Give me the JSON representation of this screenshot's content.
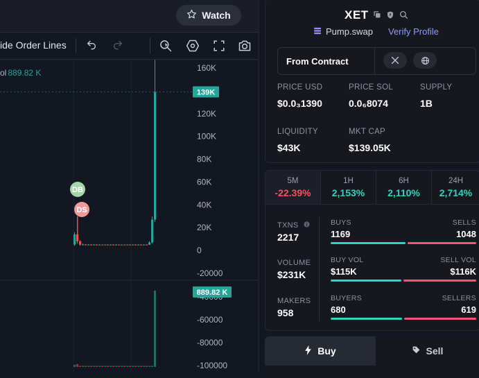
{
  "topbar": {
    "watch_label": "Watch"
  },
  "toolbar": {
    "order_lines_label": "ide Order Lines"
  },
  "volume": {
    "label": "ol",
    "value": "889.82 K"
  },
  "chart_data": {
    "type": "candlestick",
    "price_axis": {
      "ticks": [
        "160K",
        "140K",
        "120K",
        "100K",
        "80K",
        "60K",
        "40K",
        "20K",
        "0",
        "-20000"
      ],
      "tick_values": [
        160000,
        140000,
        120000,
        100000,
        80000,
        60000,
        40000,
        20000,
        0,
        -20000
      ],
      "last_price_label": "139K",
      "last_price": 139000
    },
    "volume_axis": {
      "ticks": [
        "-40000",
        "-60000",
        "-80000",
        "-100000"
      ],
      "tick_values": [
        -40000,
        -60000,
        -80000,
        -100000
      ],
      "last_volume_label": "889.82 K"
    },
    "markers": [
      {
        "label": "DB",
        "color": "#a5d6a7"
      },
      {
        "label": "DS",
        "color": "#ef9a9a"
      }
    ],
    "candles": [
      {
        "open": 5000,
        "close": 14000,
        "high": 16000,
        "low": 4000,
        "up": true
      },
      {
        "open": 14000,
        "close": 8000,
        "high": 30000,
        "low": 6000,
        "up": false
      },
      {
        "open": 8000,
        "close": 5000,
        "high": 9000,
        "low": 4000,
        "up": false
      },
      {
        "open": 5000,
        "close": 5200,
        "high": 6000,
        "low": 4500,
        "up": true
      },
      {
        "open": 5200,
        "close": 5000,
        "high": 5600,
        "low": 4600,
        "up": false
      },
      {
        "open": 5000,
        "close": 5100,
        "high": 5500,
        "low": 4700,
        "up": true
      },
      {
        "open": 5100,
        "close": 5000,
        "high": 5400,
        "low": 4700,
        "up": false
      },
      {
        "open": 5000,
        "close": 5100,
        "high": 5400,
        "low": 4800,
        "up": true
      },
      {
        "open": 5100,
        "close": 5000,
        "high": 5300,
        "low": 4800,
        "up": false
      },
      {
        "open": 5000,
        "close": 5050,
        "high": 5300,
        "low": 4800,
        "up": true
      },
      {
        "open": 5050,
        "close": 4950,
        "high": 5200,
        "low": 4700,
        "up": false
      },
      {
        "open": 4950,
        "close": 5100,
        "high": 5300,
        "low": 4800,
        "up": true
      },
      {
        "open": 5100,
        "close": 5000,
        "high": 5300,
        "low": 4800,
        "up": false
      },
      {
        "open": 5000,
        "close": 5100,
        "high": 5300,
        "low": 4800,
        "up": true
      },
      {
        "open": 5100,
        "close": 5000,
        "high": 5300,
        "low": 4800,
        "up": false
      },
      {
        "open": 5000,
        "close": 5100,
        "high": 5300,
        "low": 4800,
        "up": true
      },
      {
        "open": 5100,
        "close": 5000,
        "high": 5300,
        "low": 4800,
        "up": false
      },
      {
        "open": 5000,
        "close": 5050,
        "high": 5200,
        "low": 4800,
        "up": true
      },
      {
        "open": 5050,
        "close": 5000,
        "high": 5200,
        "low": 4800,
        "up": false
      },
      {
        "open": 5000,
        "close": 5100,
        "high": 5300,
        "low": 4800,
        "up": true
      },
      {
        "open": 5100,
        "close": 5000,
        "high": 5300,
        "low": 4800,
        "up": false
      },
      {
        "open": 5000,
        "close": 5100,
        "high": 5300,
        "low": 4800,
        "up": true
      },
      {
        "open": 5100,
        "close": 5000,
        "high": 5300,
        "low": 4800,
        "up": false
      },
      {
        "open": 5000,
        "close": 5100,
        "high": 5300,
        "low": 4800,
        "up": true
      },
      {
        "open": 5100,
        "close": 5000,
        "high": 5300,
        "low": 4800,
        "up": false
      },
      {
        "open": 5000,
        "close": 5100,
        "high": 5300,
        "low": 4800,
        "up": true
      },
      {
        "open": 5100,
        "close": 5000,
        "high": 5300,
        "low": 4800,
        "up": false
      },
      {
        "open": 5000,
        "close": 7000,
        "high": 8000,
        "low": 4800,
        "up": true
      },
      {
        "open": 7000,
        "close": 27000,
        "high": 30000,
        "low": 6000,
        "up": true
      },
      {
        "open": 27000,
        "close": 139000,
        "high": 167000,
        "low": 25000,
        "up": true
      }
    ]
  },
  "token": {
    "symbol": "XET",
    "dex": "Pump.swap",
    "verify_label": "Verify Profile"
  },
  "contract": {
    "label": "From Contract"
  },
  "stats": {
    "price_usd": {
      "label": "PRICE USD",
      "value": "$0.0₃1390"
    },
    "price_sol": {
      "label": "PRICE SOL",
      "value": "0.0₆8074"
    },
    "supply": {
      "label": "SUPPLY",
      "value": "1B"
    },
    "liquidity": {
      "label": "LIQUIDITY",
      "value": "$43K"
    },
    "mkt_cap": {
      "label": "MKT CAP",
      "value": "$139.05K"
    }
  },
  "periods": [
    {
      "period": "5M",
      "change": "-22.39%",
      "color": "#f7525f"
    },
    {
      "period": "1H",
      "change": "2,153%",
      "color": "#2dd4bf"
    },
    {
      "period": "6H",
      "change": "2,110%",
      "color": "#2dd4bf"
    },
    {
      "period": "24H",
      "change": "2,714%",
      "color": "#2dd4bf"
    }
  ],
  "metrics": {
    "txns": {
      "label": "TXNS",
      "value": "2217"
    },
    "volume": {
      "label": "VOLUME",
      "value": "$231K"
    },
    "makers": {
      "label": "MAKERS",
      "value": "958"
    },
    "buys": {
      "label": "BUYS",
      "value": "1169"
    },
    "sells": {
      "label": "SELLS",
      "value": "1048"
    },
    "buy_vol": {
      "label": "BUY VOL",
      "value": "$115K"
    },
    "sell_vol": {
      "label": "SELL VOL",
      "value": "$116K"
    },
    "buyers": {
      "label": "BUYERS",
      "value": "680"
    },
    "sellers": {
      "label": "SELLERS",
      "value": "619"
    }
  },
  "trade": {
    "buy_label": "Buy",
    "sell_label": "Sell"
  },
  "colors": {
    "up": "#26a69a",
    "down": "#ef5350",
    "buy_bar": "#2dd4bf",
    "sell_bar": "#f7527a",
    "accent": "#8b9bff"
  }
}
